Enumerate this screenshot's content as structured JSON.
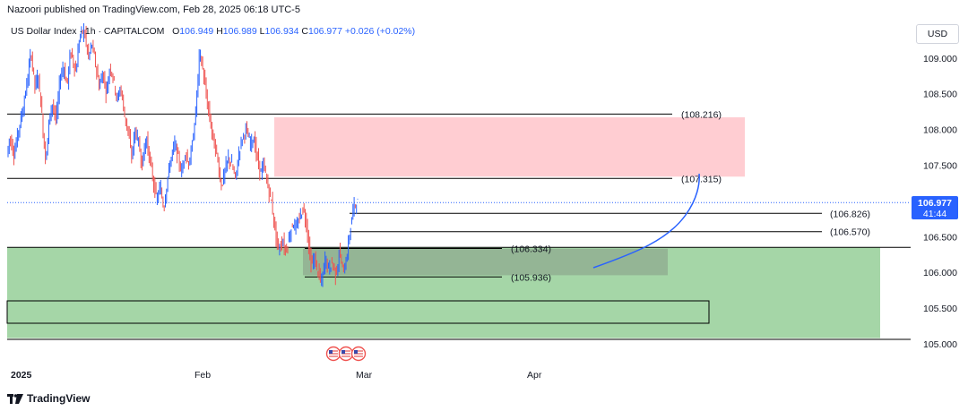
{
  "publisher_text": "Nazoori published on TradingView.com, Feb 28, 2025 06:18 UTC-5",
  "legend": {
    "symbol": "US Dollar Index · 1h · CAPITALCOM",
    "open_label": "O",
    "open": "106.949",
    "high_label": "H",
    "high": "106.989",
    "low_label": "L",
    "low": "106.934",
    "close_label": "C",
    "close": "106.977",
    "change": "+0.026 (+0.02%)"
  },
  "currency_label": "USD",
  "current_price": {
    "price": "106.977",
    "countdown": "41:44"
  },
  "footer": {
    "brand": "TradingView"
  },
  "chart_data": {
    "type": "candlestick",
    "price_axis": {
      "ticks": [
        "109.000",
        "108.500",
        "108.000",
        "107.500",
        "106.500",
        "106.000",
        "105.500",
        "105.000"
      ],
      "range": [
        104.95,
        109.45
      ]
    },
    "time_axis": {
      "ticks": [
        "2025",
        "Feb",
        "Mar",
        "Apr"
      ]
    },
    "levels": [
      {
        "label": "(108.216)",
        "price": 108.216
      },
      {
        "label": "(107.315)",
        "price": 107.315
      },
      {
        "label": "(106.826)",
        "price": 106.826
      },
      {
        "label": "(106.570)",
        "price": 106.57
      },
      {
        "label": "(106.334)",
        "price": 106.334
      },
      {
        "label": "(105.936)",
        "price": 105.936
      }
    ],
    "zones": [
      {
        "name": "supply",
        "price_top": 108.17,
        "price_bottom": 107.34,
        "color": "#ffcdd2"
      },
      {
        "name": "demand",
        "price_top": 106.35,
        "price_bottom": 105.08,
        "color": "#a5d6a7"
      },
      {
        "name": "inner-demand",
        "price_top": 106.33,
        "price_bottom": 105.96,
        "color": "#8fa98f"
      }
    ],
    "candle_color_up": "#2962ff",
    "candle_color_down": "#ef5350",
    "projection_color": "#2962ff"
  }
}
